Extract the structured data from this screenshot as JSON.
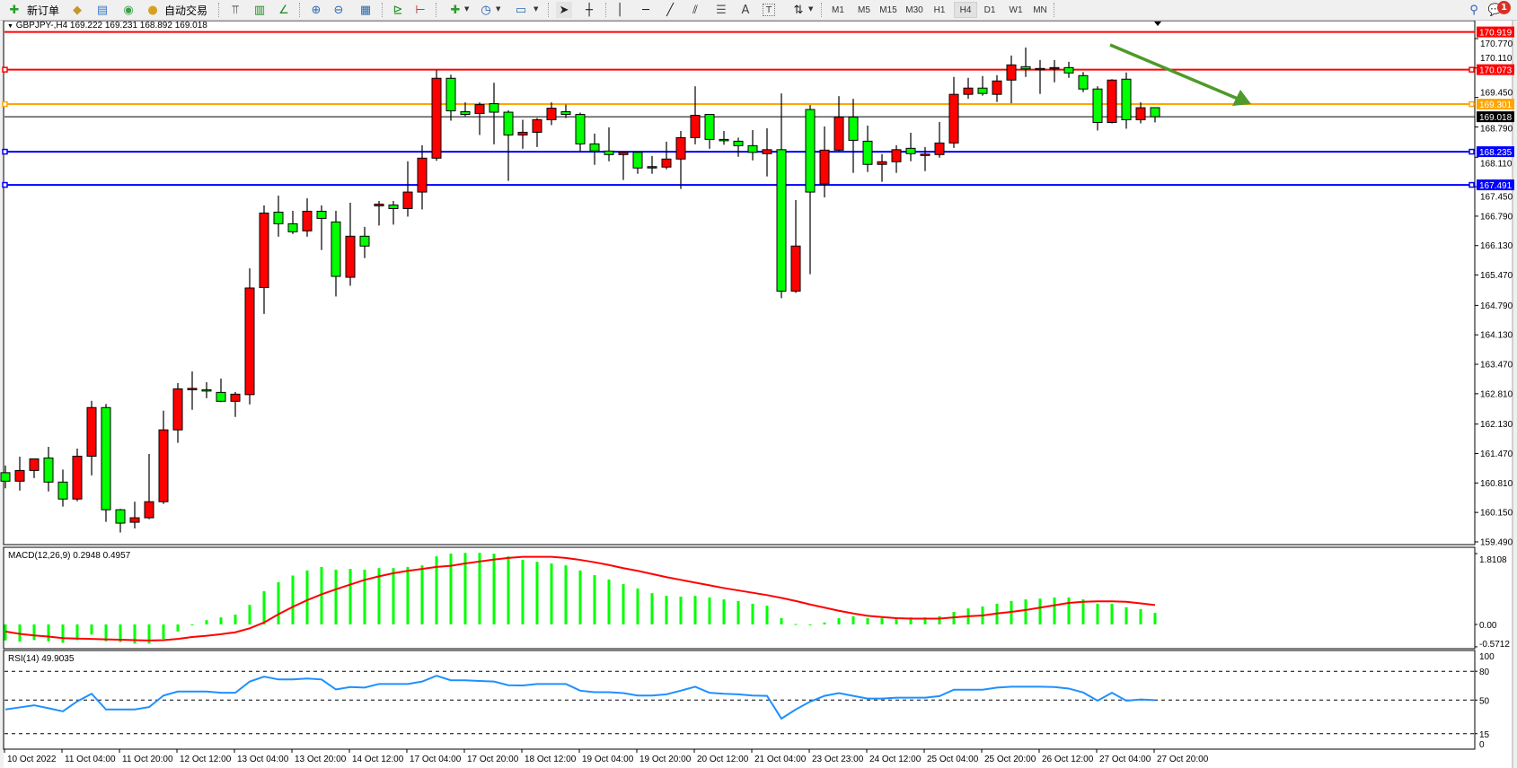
{
  "toolbar": {
    "new_order_label": "新订单",
    "auto_trading_label": "自动交易",
    "timeframes": [
      "M1",
      "M5",
      "M15",
      "M30",
      "H1",
      "H4",
      "D1",
      "W1",
      "MN"
    ],
    "active_timeframe": "H4",
    "notification_count": "1",
    "icons": [
      "new-order-icon",
      "market-watch-icon",
      "navigator-icon",
      "signals-icon",
      "auto-trading-icon",
      "bar-chart-icon",
      "candlestick-icon",
      "line-chart-icon",
      "zoom-in-icon",
      "zoom-out-icon",
      "tile-windows-icon",
      "auto-scroll-icon",
      "chart-shift-icon",
      "indicators-icon",
      "periods-icon",
      "templates-icon",
      "cursor-icon",
      "crosshair-icon",
      "vertical-line-icon",
      "horizontal-line-icon",
      "trendline-icon",
      "equidistant-channel-icon",
      "fibonacci-icon",
      "text-icon",
      "text-label-icon",
      "arrows-icon",
      "search-icon",
      "chat-icon"
    ],
    "tools": {
      "text": "A",
      "label": "T"
    }
  },
  "chart": {
    "header": "GBPJPY-,H4  169.222 169.231 168.892 169.018",
    "symbol": "GBPJPY-",
    "timeframe": "H4",
    "ohlc": {
      "open": 169.222,
      "high": 169.231,
      "low": 168.892,
      "close": 169.018
    },
    "colors": {
      "bull": "#ff0000",
      "bear": "#00ff00",
      "wick": "#000000",
      "macd_hist": "#00ff00",
      "macd_signal": "#ff0000",
      "rsi": "#1e90ff",
      "arrow": "#4e9a2a"
    },
    "price_ticks": [
      "170.770",
      "170.110",
      "169.450",
      "168.790",
      "168.110",
      "167.450",
      "166.790",
      "166.130",
      "165.470",
      "164.790",
      "164.130",
      "163.470",
      "162.810",
      "162.130",
      "161.470",
      "160.810",
      "160.150",
      "159.490"
    ],
    "price_range": [
      159.49,
      170.77
    ],
    "horizontal_lines": [
      {
        "price": 170.919,
        "label": "170.919",
        "color": "#ff0000",
        "marker": false
      },
      {
        "price": 170.073,
        "label": "170.073",
        "color": "#ff0000",
        "marker": true
      },
      {
        "price": 169.301,
        "label": "169.301",
        "color": "#ffa500",
        "marker": true
      },
      {
        "price": 168.235,
        "label": "168.235",
        "color": "#0000ff",
        "marker": true
      },
      {
        "price": 167.491,
        "label": "167.491",
        "color": "#0000ff",
        "marker": true
      }
    ],
    "current_price": {
      "price": 169.018,
      "label": "169.018",
      "color": "#000000"
    },
    "time_labels": [
      "10 Oct 2022",
      "11 Oct 04:00",
      "11 Oct 20:00",
      "12 Oct 12:00",
      "13 Oct 04:00",
      "13 Oct 20:00",
      "14 Oct 12:00",
      "17 Oct 04:00",
      "17 Oct 20:00",
      "18 Oct 12:00",
      "19 Oct 04:00",
      "19 Oct 20:00",
      "20 Oct 12:00",
      "21 Oct 04:00",
      "23 Oct 23:00",
      "24 Oct 12:00",
      "25 Oct 04:00",
      "25 Oct 20:00",
      "26 Oct 12:00",
      "27 Oct 04:00",
      "27 Oct 20:00"
    ],
    "bars_per_time_label": 4
  },
  "chart_data": {
    "type": "candlestick",
    "candles_ohlc": [
      [
        161.04,
        161.2,
        160.69,
        160.85
      ],
      [
        160.85,
        161.4,
        160.64,
        161.09
      ],
      [
        161.09,
        161.35,
        160.92,
        161.35
      ],
      [
        161.37,
        161.62,
        160.62,
        160.83
      ],
      [
        160.83,
        161.11,
        160.28,
        160.45
      ],
      [
        160.45,
        161.58,
        160.4,
        161.41
      ],
      [
        161.41,
        162.65,
        160.98,
        162.5
      ],
      [
        162.5,
        162.58,
        159.94,
        160.21
      ],
      [
        160.21,
        160.23,
        159.7,
        159.91
      ],
      [
        159.93,
        160.39,
        159.79,
        160.03
      ],
      [
        160.03,
        161.46,
        160.0,
        160.39
      ],
      [
        160.39,
        162.43,
        160.34,
        162.0
      ],
      [
        162.0,
        163.05,
        161.71,
        162.92
      ],
      [
        162.92,
        163.31,
        162.45,
        162.93
      ],
      [
        162.9,
        163.07,
        162.71,
        162.89
      ],
      [
        162.84,
        163.15,
        162.62,
        162.64
      ],
      [
        162.64,
        162.85,
        162.29,
        162.8
      ],
      [
        162.79,
        165.62,
        162.57,
        165.18
      ],
      [
        165.19,
        167.03,
        164.6,
        166.86
      ],
      [
        166.88,
        167.25,
        166.33,
        166.62
      ],
      [
        166.62,
        166.91,
        166.39,
        166.44
      ],
      [
        166.46,
        167.19,
        166.33,
        166.9
      ],
      [
        166.9,
        167.03,
        166.03,
        166.74
      ],
      [
        166.66,
        166.91,
        164.99,
        165.44
      ],
      [
        165.42,
        167.09,
        165.23,
        166.34
      ],
      [
        166.34,
        166.55,
        165.85,
        166.12
      ],
      [
        167.02,
        167.13,
        166.58,
        167.06
      ],
      [
        167.04,
        167.13,
        166.6,
        166.96
      ],
      [
        166.96,
        168.02,
        166.78,
        167.33
      ],
      [
        167.33,
        168.38,
        166.94,
        168.09
      ],
      [
        168.09,
        170.06,
        168.03,
        169.88
      ],
      [
        169.88,
        169.96,
        168.93,
        169.15
      ],
      [
        169.13,
        169.34,
        169.03,
        169.07
      ],
      [
        169.09,
        169.34,
        168.61,
        169.29
      ],
      [
        169.31,
        169.78,
        168.4,
        169.12
      ],
      [
        169.12,
        169.16,
        167.58,
        168.61
      ],
      [
        168.61,
        168.95,
        168.3,
        168.67
      ],
      [
        168.67,
        168.99,
        168.34,
        168.95
      ],
      [
        168.95,
        169.34,
        168.83,
        169.21
      ],
      [
        169.13,
        169.29,
        168.99,
        169.07
      ],
      [
        169.07,
        169.11,
        168.25,
        168.41
      ],
      [
        168.41,
        168.64,
        167.94,
        168.25
      ],
      [
        168.25,
        168.78,
        168.02,
        168.17
      ],
      [
        168.17,
        168.22,
        167.6,
        168.22
      ],
      [
        168.22,
        168.22,
        167.74,
        167.87
      ],
      [
        167.9,
        168.14,
        167.74,
        167.9
      ],
      [
        167.89,
        168.46,
        167.84,
        168.07
      ],
      [
        168.07,
        168.7,
        167.4,
        168.55
      ],
      [
        168.55,
        169.7,
        168.4,
        169.05
      ],
      [
        169.07,
        169.07,
        168.3,
        168.51
      ],
      [
        168.51,
        168.7,
        168.39,
        168.5
      ],
      [
        168.47,
        168.55,
        168.12,
        168.37
      ],
      [
        168.37,
        168.72,
        168.04,
        168.22
      ],
      [
        168.19,
        168.76,
        167.68,
        168.28
      ],
      [
        168.28,
        169.54,
        164.95,
        165.11
      ],
      [
        165.11,
        167.15,
        165.07,
        166.12
      ],
      [
        169.18,
        169.28,
        165.49,
        167.33
      ],
      [
        167.51,
        168.8,
        167.21,
        168.27
      ],
      [
        168.27,
        169.48,
        168.25,
        169.01
      ],
      [
        169.01,
        169.42,
        167.76,
        168.49
      ],
      [
        168.47,
        168.82,
        167.78,
        167.95
      ],
      [
        167.95,
        168.18,
        167.56,
        168.01
      ],
      [
        168.01,
        168.38,
        167.76,
        168.28
      ],
      [
        168.31,
        168.66,
        168.02,
        168.19
      ],
      [
        168.18,
        168.34,
        167.8,
        168.18
      ],
      [
        168.17,
        168.9,
        168.1,
        168.43
      ],
      [
        168.43,
        169.91,
        168.32,
        169.52
      ],
      [
        169.52,
        169.89,
        169.42,
        169.66
      ],
      [
        169.66,
        169.93,
        169.49,
        169.54
      ],
      [
        169.52,
        169.95,
        169.35,
        169.82
      ],
      [
        169.84,
        170.39,
        169.32,
        170.18
      ],
      [
        170.14,
        170.57,
        169.91,
        170.09
      ],
      [
        170.1,
        170.29,
        169.53,
        170.1
      ],
      [
        170.12,
        170.29,
        169.79,
        170.12
      ],
      [
        170.12,
        170.25,
        169.89,
        170.0
      ],
      [
        169.94,
        170.02,
        169.57,
        169.64
      ],
      [
        169.64,
        169.7,
        168.71,
        168.89
      ],
      [
        168.89,
        169.86,
        168.87,
        169.84
      ],
      [
        169.86,
        170.01,
        168.75,
        168.95
      ],
      [
        168.95,
        169.34,
        168.87,
        169.22
      ],
      [
        169.222,
        169.231,
        168.892,
        169.018
      ]
    ],
    "macd": {
      "label": "MACD(12,26,9) 0.2948 0.4957",
      "range": [
        -0.5712,
        1.8108
      ],
      "ticks": [
        "1.8108",
        "0.00",
        "-0.5712"
      ],
      "main": [
        -0.41,
        -0.44,
        -0.4,
        -0.43,
        -0.47,
        -0.4,
        -0.26,
        -0.43,
        -0.45,
        -0.49,
        -0.49,
        -0.37,
        -0.18,
        -0.02,
        0.11,
        0.18,
        0.25,
        0.5,
        0.85,
        1.08,
        1.25,
        1.38,
        1.47,
        1.4,
        1.42,
        1.4,
        1.44,
        1.44,
        1.47,
        1.51,
        1.74,
        1.81,
        1.83,
        1.83,
        1.81,
        1.74,
        1.65,
        1.6,
        1.56,
        1.51,
        1.38,
        1.26,
        1.15,
        1.03,
        0.92,
        0.8,
        0.73,
        0.71,
        0.73,
        0.69,
        0.64,
        0.6,
        0.53,
        0.48,
        0.16,
        0.01,
        -0.02,
        0.05,
        0.16,
        0.21,
        0.16,
        0.16,
        0.18,
        0.18,
        0.18,
        0.21,
        0.32,
        0.41,
        0.46,
        0.53,
        0.6,
        0.64,
        0.66,
        0.69,
        0.69,
        0.64,
        0.53,
        0.53,
        0.44,
        0.39,
        0.2948
      ],
      "signal": [
        -0.18,
        -0.24,
        -0.28,
        -0.31,
        -0.35,
        -0.36,
        -0.37,
        -0.38,
        -0.39,
        -0.4,
        -0.41,
        -0.4,
        -0.37,
        -0.32,
        -0.29,
        -0.25,
        -0.2,
        -0.1,
        0.05,
        0.26,
        0.45,
        0.62,
        0.77,
        0.9,
        1.02,
        1.14,
        1.23,
        1.31,
        1.37,
        1.42,
        1.47,
        1.5,
        1.56,
        1.61,
        1.66,
        1.7,
        1.73,
        1.73,
        1.73,
        1.7,
        1.65,
        1.59,
        1.52,
        1.44,
        1.37,
        1.29,
        1.21,
        1.14,
        1.07,
        1.0,
        0.93,
        0.87,
        0.81,
        0.75,
        0.68,
        0.6,
        0.51,
        0.43,
        0.35,
        0.28,
        0.22,
        0.19,
        0.16,
        0.15,
        0.15,
        0.15,
        0.18,
        0.21,
        0.23,
        0.28,
        0.32,
        0.37,
        0.43,
        0.49,
        0.55,
        0.58,
        0.59,
        0.59,
        0.58,
        0.54,
        0.4957
      ]
    },
    "rsi": {
      "label": "RSI(14) 49.9035",
      "range": [
        0,
        100
      ],
      "ticks": [
        "100",
        "80",
        "50",
        "15",
        "0"
      ],
      "levels": [
        80,
        50,
        15
      ],
      "values": [
        40.2,
        42.4,
        44.6,
        41.5,
        38.3,
        48.7,
        56.6,
        40.2,
        40.2,
        40.2,
        42.7,
        54.7,
        58.9,
        58.9,
        58.9,
        57.6,
        57.6,
        69.3,
        74.4,
        71.5,
        71.5,
        72.5,
        71.5,
        61.1,
        63.6,
        63.0,
        66.8,
        66.8,
        66.8,
        69.3,
        75.3,
        70.6,
        70.6,
        69.9,
        69.3,
        65.5,
        65.2,
        66.8,
        66.8,
        66.8,
        59.8,
        58.2,
        58.2,
        57.3,
        54.7,
        54.7,
        56.0,
        59.8,
        63.9,
        57.6,
        56.6,
        56.0,
        54.7,
        54.4,
        30.7,
        40.2,
        48.4,
        54.4,
        57.3,
        54.4,
        51.6,
        51.6,
        52.5,
        52.5,
        52.5,
        54.1,
        60.8,
        60.8,
        60.8,
        63.0,
        63.9,
        63.9,
        63.9,
        63.6,
        62.0,
        57.9,
        49.4,
        57.6,
        49.4,
        50.6,
        49.9035
      ]
    }
  }
}
